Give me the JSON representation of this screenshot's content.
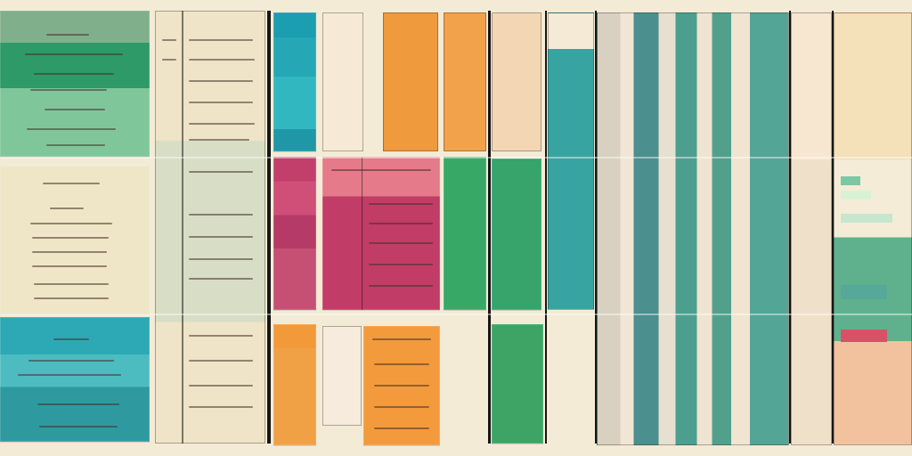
{
  "page": {
    "title": "",
    "subtitle": ""
  }
}
